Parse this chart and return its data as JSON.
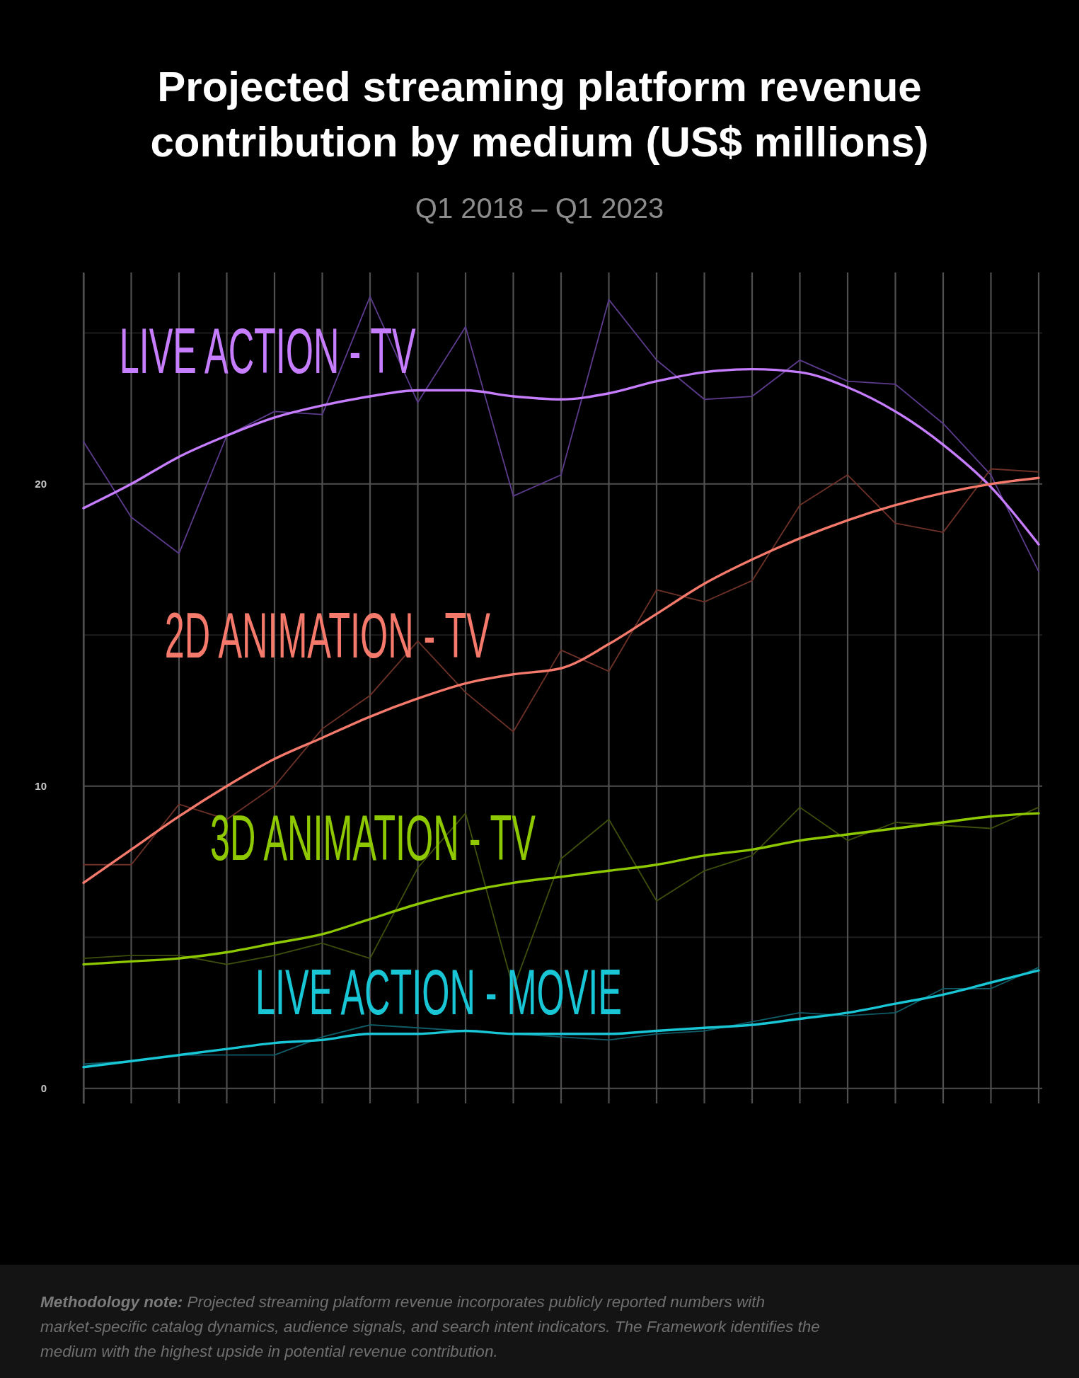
{
  "chart_data": {
    "type": "line",
    "title": "Projected streaming platform revenue contribution by medium (US$ millions)",
    "subtitle": "Q1 2018 – Q1 2023",
    "categories": [
      null,
      null,
      null,
      null,
      null,
      null,
      null,
      null,
      null,
      null,
      null,
      null,
      null,
      null,
      null,
      null,
      null,
      null,
      null,
      null,
      null
    ],
    "series": [
      {
        "color": "#5c3b8c",
        "values": [
          21.4,
          18.9,
          17.7,
          21.6,
          22.4,
          22.3,
          26.2,
          22.7,
          25.2,
          19.6,
          20.3,
          26.1,
          24.1,
          22.8,
          22.9,
          24.1,
          23.4,
          23.3,
          22.0,
          20.3,
          17.1
        ]
      },
      {
        "color": "#6e3128",
        "values": [
          7.4,
          7.4,
          9.4,
          8.9,
          10.0,
          11.9,
          13.0,
          14.8,
          13.1,
          11.8,
          14.5,
          13.8,
          16.5,
          16.1,
          16.8,
          19.3,
          20.3,
          18.7,
          18.4,
          20.5,
          20.4
        ]
      },
      {
        "color": "#3f4f0c",
        "values": [
          4.3,
          4.4,
          4.4,
          4.1,
          4.4,
          4.8,
          4.3,
          7.3,
          9.1,
          3.3,
          7.6,
          8.9,
          6.2,
          7.2,
          7.7,
          9.3,
          8.2,
          8.8,
          8.7,
          8.6,
          9.3
        ]
      },
      {
        "color": "#0f5d68",
        "values": [
          0.8,
          0.9,
          1.1,
          1.1,
          1.1,
          1.7,
          2.1,
          2.0,
          1.9,
          1.8,
          1.7,
          1.6,
          1.8,
          1.9,
          2.2,
          2.5,
          2.4,
          2.5,
          3.3,
          3.3,
          4.0
        ]
      },
      {
        "name": "LIVE ACTION - TV",
        "color": "#c77dff",
        "values": [
          19.2,
          20.0,
          20.9,
          21.6,
          22.2,
          22.6,
          22.9,
          23.1,
          23.1,
          22.9,
          22.8,
          23.0,
          23.4,
          23.7,
          23.8,
          23.7,
          23.2,
          22.4,
          21.3,
          19.9,
          18.0
        ]
      },
      {
        "name": "2D ANIMATION - TV",
        "color": "#f57a6c",
        "values": [
          6.8,
          7.9,
          9.0,
          10.0,
          10.9,
          11.6,
          12.3,
          12.9,
          13.4,
          13.7,
          13.9,
          14.7,
          15.7,
          16.7,
          17.5,
          18.2,
          18.8,
          19.3,
          19.7,
          20.0,
          20.2
        ]
      },
      {
        "name": "3D ANIMATION - TV",
        "color": "#8ec800",
        "values": [
          4.1,
          4.2,
          4.3,
          4.5,
          4.8,
          5.1,
          5.6,
          6.1,
          6.5,
          6.8,
          7.0,
          7.2,
          7.4,
          7.7,
          7.9,
          8.2,
          8.4,
          8.6,
          8.8,
          9.0,
          9.1
        ]
      },
      {
        "name": "LIVE ACTION - MOVIE",
        "color": "#18c6d6",
        "values": [
          0.7,
          0.9,
          1.1,
          1.3,
          1.5,
          1.6,
          1.8,
          1.8,
          1.9,
          1.8,
          1.8,
          1.8,
          1.9,
          2.0,
          2.1,
          2.3,
          2.5,
          2.8,
          3.1,
          3.5,
          3.9
        ]
      }
    ],
    "ylim": [
      -0.5,
      27
    ],
    "yticks": [
      0,
      {
        "value": 5,
        "label": null
      },
      10,
      {
        "value": 15,
        "label": null
      },
      20,
      {
        "value": 25,
        "label": null
      }
    ],
    "grid": true,
    "annotations": [
      "Methodology note: Projected streaming platform revenue incorporates publicly reported numbers with market-specific catalog dynamics, audience signals, and search intent indicators. The Framework identifies the medium with the highest upside in potential revenue contribution."
    ]
  }
}
